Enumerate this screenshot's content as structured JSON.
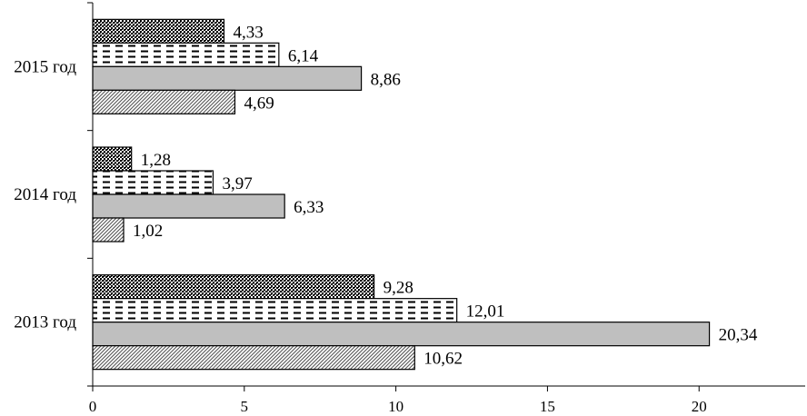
{
  "chart_data": {
    "type": "bar",
    "orientation": "horizontal",
    "title": "",
    "xlabel": "",
    "ylabel": "",
    "xlim": [
      0,
      23.5
    ],
    "xticks": [
      0,
      5,
      10,
      15,
      20
    ],
    "xtick_labels": [
      "0",
      "5",
      "10",
      "15",
      "20"
    ],
    "grid": false,
    "legend": "none",
    "categories": [
      "2015 год",
      "2014 год",
      "2013 год"
    ],
    "series": [
      {
        "pattern": "dense-dots",
        "values": [
          4.33,
          1.28,
          9.28
        ],
        "labels": [
          "4,33",
          "1,28",
          "9,28"
        ]
      },
      {
        "pattern": "dashes",
        "values": [
          6.14,
          3.97,
          12.01
        ],
        "labels": [
          "6,14",
          "3,97",
          "12,01"
        ]
      },
      {
        "pattern": "solid-gray",
        "color": "#bfbfbf",
        "values": [
          8.86,
          6.33,
          20.34
        ],
        "labels": [
          "8,86",
          "6,33",
          "20,34"
        ]
      },
      {
        "pattern": "diagonal-hatch",
        "values": [
          4.69,
          1.02,
          10.62
        ],
        "labels": [
          "4,69",
          "1,02",
          "10,62"
        ]
      }
    ]
  }
}
